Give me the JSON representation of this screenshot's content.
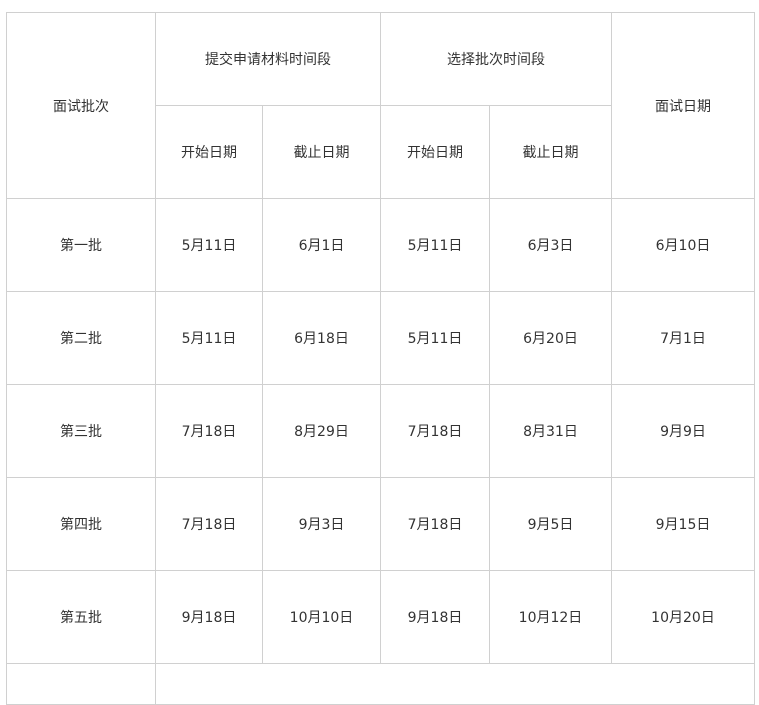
{
  "header": {
    "batch": "面试批次",
    "submit_period": "提交申请材料时间段",
    "select_period": "选择批次时间段",
    "interview_date": "面试日期",
    "start": "开始日期",
    "end": "截止日期"
  },
  "rows": [
    {
      "batch": "第一批",
      "submit_start": "5月11日",
      "submit_end": "6月1日",
      "select_start": "5月11日",
      "select_end": "6月3日",
      "interview": "6月10日"
    },
    {
      "batch": "第二批",
      "submit_start": "5月11日",
      "submit_end": "6月18日",
      "select_start": "5月11日",
      "select_end": "6月20日",
      "interview": "7月1日"
    },
    {
      "batch": "第三批",
      "submit_start": "7月18日",
      "submit_end": "8月29日",
      "select_start": "7月18日",
      "select_end": "8月31日",
      "interview": "9月9日"
    },
    {
      "batch": "第四批",
      "submit_start": "7月18日",
      "submit_end": "9月3日",
      "select_start": "7月18日",
      "select_end": "9月5日",
      "interview": "9月15日"
    },
    {
      "batch": "第五批",
      "submit_start": "9月18日",
      "submit_end": "10月10日",
      "select_start": "9月18日",
      "select_end": "10月12日",
      "interview": "10月20日"
    }
  ]
}
